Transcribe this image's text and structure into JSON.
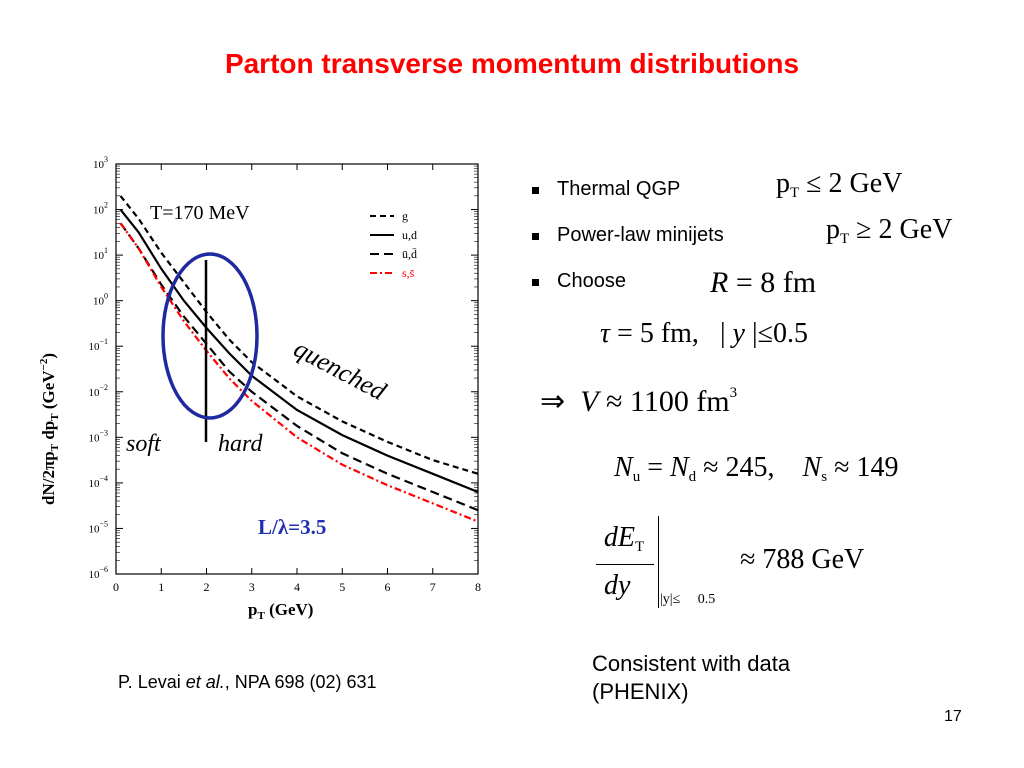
{
  "slide": {
    "title": "Parton transverse momentum distributions",
    "page_number": "17"
  },
  "citation": {
    "prefix": "P. Levai ",
    "etal": "et al.",
    "suffix": ",  NPA 698 (02) 631"
  },
  "bullets": [
    {
      "label": "Thermal QGP"
    },
    {
      "label": "Power-law minijets"
    },
    {
      "label": "Choose"
    }
  ],
  "equations": {
    "thermal_var": "p",
    "thermal_sub": "T",
    "thermal_rel": "≤ 2 GeV",
    "minijet_var": "p",
    "minijet_sub": "T",
    "minijet_rel": "≥ 2 GeV",
    "R_var": "R",
    "R_value": "= 8 fm",
    "tau_var": "τ",
    "tau_value": "= 5 fm,",
    "y_abs_open": "| ",
    "y_var": "y",
    "y_abs_close": " |≤0.5",
    "implies": "⇒",
    "V_var": "V",
    "V_value": "≈ 1100 fm",
    "V_exp": "3",
    "Nu_var": "N",
    "Nu_sub": "u",
    "Nd_eq": " = ",
    "Nd_var": "N",
    "Nd_sub": "d",
    "N_value": " ≈ 245,",
    "Ns_var": "N",
    "Ns_sub": "s",
    "Ns_value": " ≈ 149",
    "dET_num": "dE",
    "dET_sub": "T",
    "dET_den": "dy",
    "dET_cond": "|y|≤",
    "dET_cond_val": "0.5",
    "dET_value": "≈ 788 GeV"
  },
  "conclusion": {
    "line1": "Consistent with data",
    "line2": "(PHENIX)"
  },
  "chart_data": {
    "type": "line",
    "xlabel_main": "p",
    "xlabel_sub": "T",
    "xlabel_unit": " (GeV)",
    "ylabel": "dN/2πp",
    "ylabel_sub1": "T",
    "ylabel_mid": " dp",
    "ylabel_sub2": "T",
    "ylabel_unit": " (GeV",
    "ylabel_exp": "−2",
    "ylabel_close": ")",
    "xlim": [
      0,
      8
    ],
    "ylim_log10": [
      -6,
      3
    ],
    "log_y": true,
    "x_ticks": [
      "0",
      "1",
      "2",
      "3",
      "4",
      "5",
      "6",
      "7",
      "8"
    ],
    "y_ticks_base": "10",
    "y_ticks_exp": [
      "−6",
      "−5",
      "−4",
      "−3",
      "−2",
      "−1",
      "0",
      "1",
      "2",
      "3"
    ],
    "legend_placement": "top-right",
    "series": [
      {
        "name": "g",
        "color": "#000000",
        "dash": "6,4",
        "x": [
          0.1,
          0.5,
          1,
          1.5,
          2,
          2.5,
          3,
          4,
          5,
          6,
          7,
          8
        ],
        "log10_y": [
          2.3,
          1.8,
          1.05,
          0.4,
          -0.25,
          -0.85,
          -1.35,
          -2.1,
          -2.65,
          -3.1,
          -3.5,
          -3.8
        ]
      },
      {
        "name": "u,d",
        "color": "#000000",
        "dash": "",
        "x": [
          0.1,
          0.5,
          1,
          1.5,
          2,
          2.5,
          3,
          4,
          5,
          6,
          7,
          8
        ],
        "log10_y": [
          2.0,
          1.5,
          0.7,
          0.0,
          -0.6,
          -1.15,
          -1.65,
          -2.4,
          -2.95,
          -3.4,
          -3.8,
          -4.2
        ]
      },
      {
        "name": "ū,d̄",
        "color": "#000000",
        "dash": "9,5",
        "x": [
          0.1,
          0.5,
          1,
          1.5,
          2,
          2.5,
          3,
          4,
          5,
          6,
          7,
          8
        ],
        "log10_y": [
          1.7,
          1.15,
          0.35,
          -0.35,
          -0.95,
          -1.55,
          -2.0,
          -2.75,
          -3.35,
          -3.8,
          -4.2,
          -4.6
        ]
      },
      {
        "name": "s,s̄",
        "color": "#ff0000",
        "dash": "7,3,2,3",
        "x": [
          0.1,
          0.5,
          1,
          1.5,
          2,
          2.5,
          3,
          4,
          5,
          6,
          7,
          8
        ],
        "log10_y": [
          1.7,
          1.15,
          0.3,
          -0.45,
          -1.1,
          -1.7,
          -2.2,
          -3.0,
          -3.6,
          -4.05,
          -4.45,
          -4.85
        ]
      }
    ],
    "annotations": {
      "temperature": "T=170 MeV",
      "soft": "soft",
      "hard": "hard",
      "quenched": "quenched",
      "lambda": "L/λ=3.5"
    }
  }
}
